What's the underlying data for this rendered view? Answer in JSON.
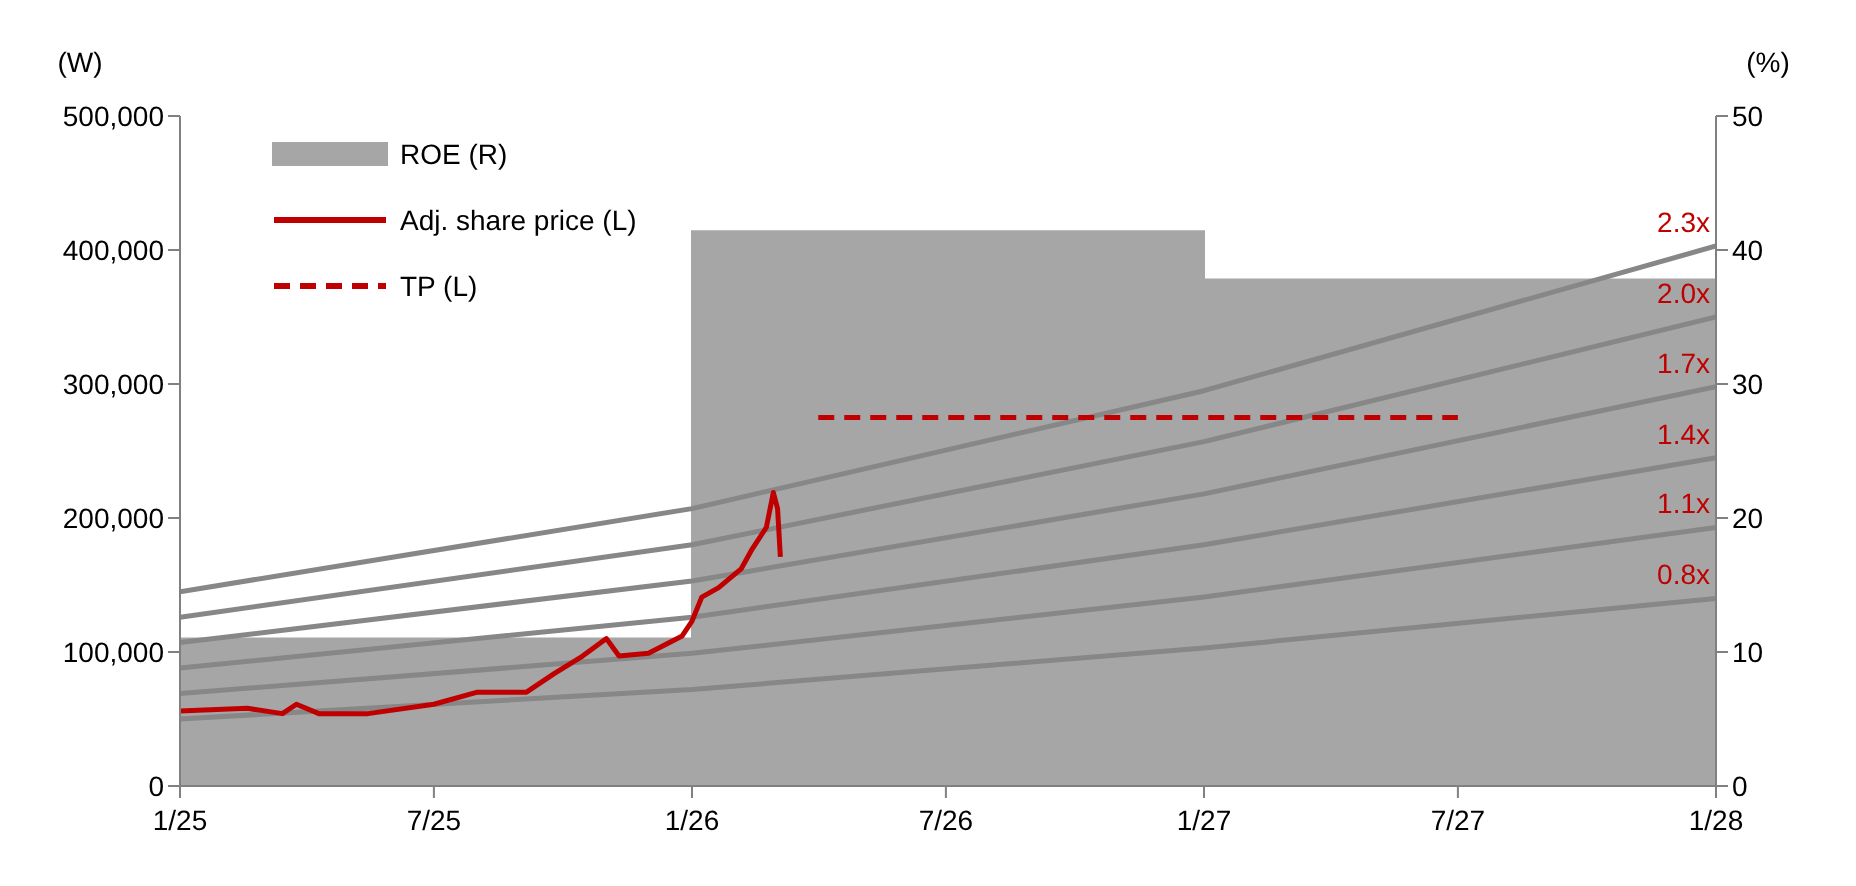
{
  "chart_data": {
    "type": "line",
    "ylabel": "(W)",
    "y2label": "(%)",
    "xlim": [
      "2025-01",
      "2028-01"
    ],
    "xticks": [
      {
        "value": "2025-01",
        "label": "1/25"
      },
      {
        "value": "2025-07",
        "label": "7/25"
      },
      {
        "value": "2026-01",
        "label": "1/26"
      },
      {
        "value": "2026-07",
        "label": "7/26"
      },
      {
        "value": "2027-01",
        "label": "1/27"
      },
      {
        "value": "2027-07",
        "label": "7/27"
      },
      {
        "value": "2028-01",
        "label": "1/28"
      }
    ],
    "ylim": [
      0,
      500000
    ],
    "yticks": [
      {
        "value": 0,
        "label": "0"
      },
      {
        "value": 100000,
        "label": "100,000"
      },
      {
        "value": 200000,
        "label": "200,000"
      },
      {
        "value": 300000,
        "label": "300,000"
      },
      {
        "value": 400000,
        "label": "400,000"
      },
      {
        "value": 500000,
        "label": "500,000"
      }
    ],
    "y2lim": [
      0,
      50
    ],
    "y2ticks": [
      0,
      10,
      20,
      30,
      40,
      50
    ],
    "grid": false,
    "legend": "top left",
    "marker": "none",
    "series": [
      {
        "name": "ROE (R)",
        "type": "area",
        "axis": "y2",
        "color": "#a6a6a6",
        "x": [
          "2025-01",
          "2026-01",
          "2026-01",
          "2027-01",
          "2027-01",
          "2028-01"
        ],
        "values": [
          11,
          11,
          41.4,
          41.4,
          37.8,
          37.8
        ]
      },
      {
        "color": "#878787",
        "x": [
          "2025-01",
          "2026-01",
          "2027-01",
          "2028-01"
        ],
        "values": [
          50000,
          72000,
          103000,
          140000
        ]
      },
      {
        "color": "#878787",
        "x": [
          "2025-01",
          "2026-01",
          "2027-01",
          "2028-01"
        ],
        "values": [
          69000,
          99000,
          141000,
          193000
        ]
      },
      {
        "color": "#878787",
        "x": [
          "2025-01",
          "2026-01",
          "2027-01",
          "2028-01"
        ],
        "values": [
          88000,
          126000,
          180000,
          245000
        ]
      },
      {
        "color": "#878787",
        "x": [
          "2025-01",
          "2026-01",
          "2027-01",
          "2028-01"
        ],
        "values": [
          107000,
          153000,
          218000,
          298000
        ]
      },
      {
        "color": "#878787",
        "x": [
          "2025-01",
          "2026-01",
          "2027-01",
          "2028-01"
        ],
        "values": [
          126000,
          180000,
          257000,
          350000
        ]
      },
      {
        "color": "#878787",
        "x": [
          "2025-01",
          "2026-01",
          "2027-01",
          "2028-01"
        ],
        "values": [
          145000,
          207000,
          295000,
          403000
        ]
      },
      {
        "name": "Adj. share price (L)",
        "color": "#c00000",
        "x": [
          "2025-01-01",
          "2025-02-18",
          "2025-03-15",
          "2025-03-25",
          "2025-04-10",
          "2025-05-15",
          "2025-07-01",
          "2025-08-01",
          "2025-09-05",
          "2025-09-25",
          "2025-10-15",
          "2025-11-01",
          "2025-11-10",
          "2025-12-01",
          "2025-12-25",
          "2026-01-01",
          "2026-01-08",
          "2026-01-20",
          "2026-02-05",
          "2026-02-13",
          "2026-02-23",
          "2026-02-28",
          "2026-03-03",
          "2026-03-05"
        ],
        "values": [
          56000,
          58000,
          54000,
          61000,
          54000,
          54000,
          61000,
          70000,
          70000,
          84000,
          97000,
          110000,
          97000,
          99000,
          112000,
          123000,
          141000,
          148000,
          162000,
          177000,
          193000,
          219000,
          207000,
          171000
        ]
      },
      {
        "name": "TP (L)",
        "line_style": "dashed",
        "color": "#c00000",
        "x": [
          "2026-04-01",
          "2027-07-01"
        ],
        "values": [
          275000,
          275000
        ]
      }
    ],
    "annotations": [
      {
        "text": "0.8x",
        "x": "2028-01",
        "y": 140000
      },
      {
        "text": "1.1x",
        "x": "2028-01",
        "y": 193000
      },
      {
        "text": "1.4x",
        "x": "2028-01",
        "y": 245000
      },
      {
        "text": "1.7x",
        "x": "2028-01",
        "y": 298000
      },
      {
        "text": "2.0x",
        "x": "2028-01",
        "y": 350000
      },
      {
        "text": "2.3x",
        "x": "2028-01",
        "y": 403000
      }
    ]
  }
}
